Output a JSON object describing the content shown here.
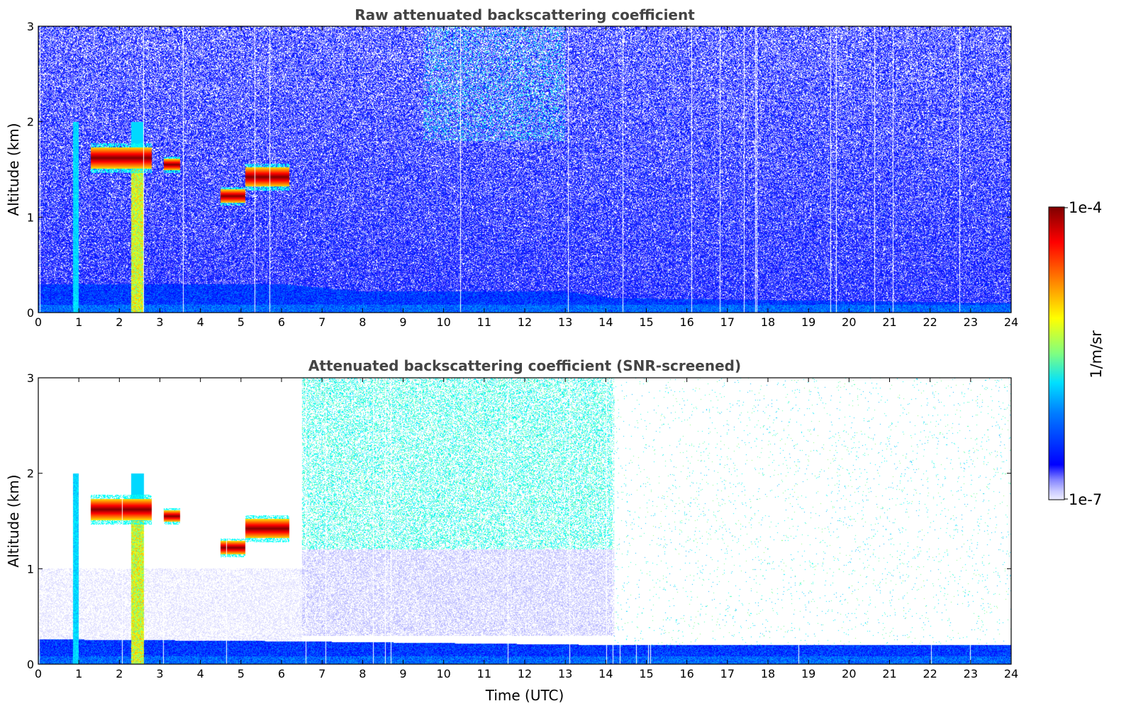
{
  "colormap": [
    "#00007f",
    "#0000ff",
    "#0080ff",
    "#00ffff",
    "#80ff80",
    "#ffff00",
    "#ff8000",
    "#ff0000",
    "#7f0000"
  ],
  "chart_data": [
    {
      "id": "raw",
      "type": "heatmap",
      "title": "Raw attenuated backscattering coefficient",
      "xlabel": "",
      "ylabel": "Altitude (km)",
      "xlim": [
        0,
        24
      ],
      "ylim": [
        0,
        3
      ],
      "xticks": [
        "0",
        "1",
        "2",
        "3",
        "4",
        "5",
        "6",
        "7",
        "8",
        "9",
        "10",
        "11",
        "12",
        "13",
        "14",
        "15",
        "16",
        "17",
        "18",
        "19",
        "20",
        "21",
        "22",
        "23",
        "24"
      ],
      "yticks": [
        "0",
        "1",
        "2",
        "3"
      ],
      "screened": false,
      "cloud_layers": [
        {
          "t_start": 1.3,
          "t_end": 2.8,
          "z_center": 1.62,
          "thickness": 0.22
        },
        {
          "t_start": 3.1,
          "t_end": 3.5,
          "z_center": 1.55,
          "thickness": 0.12
        },
        {
          "t_start": 4.5,
          "t_end": 5.1,
          "z_center": 1.22,
          "thickness": 0.14
        },
        {
          "t_start": 5.1,
          "t_end": 6.2,
          "z_center": 1.42,
          "thickness": 0.2
        }
      ],
      "boundary_layer": [
        {
          "t": 0,
          "z": 0.3
        },
        {
          "t": 6,
          "z": 0.3
        },
        {
          "t": 8,
          "z": 0.22
        },
        {
          "t": 13,
          "z": 0.22
        },
        {
          "t": 14.2,
          "z": 0.15
        },
        {
          "t": 24,
          "z": 0.1
        }
      ]
    },
    {
      "id": "screened",
      "type": "heatmap",
      "title": "Attenuated backscattering coefficient (SNR-screened)",
      "xlabel": "Time (UTC)",
      "ylabel": "Altitude (km)",
      "xlim": [
        0,
        24
      ],
      "ylim": [
        0,
        3
      ],
      "xticks": [
        "0",
        "1",
        "2",
        "3",
        "4",
        "5",
        "6",
        "7",
        "8",
        "9",
        "10",
        "11",
        "12",
        "13",
        "14",
        "15",
        "16",
        "17",
        "18",
        "19",
        "20",
        "21",
        "22",
        "23",
        "24"
      ],
      "yticks": [
        "0",
        "1",
        "2",
        "3"
      ],
      "screened": true,
      "cloud_layers": [
        {
          "t_start": 1.3,
          "t_end": 2.8,
          "z_center": 1.62,
          "thickness": 0.22
        },
        {
          "t_start": 3.1,
          "t_end": 3.5,
          "z_center": 1.55,
          "thickness": 0.12
        },
        {
          "t_start": 4.5,
          "t_end": 5.1,
          "z_center": 1.22,
          "thickness": 0.14
        },
        {
          "t_start": 5.1,
          "t_end": 6.2,
          "z_center": 1.42,
          "thickness": 0.2
        }
      ],
      "boundary_layer": [
        {
          "t": 0,
          "z": 0.26
        },
        {
          "t": 6,
          "z": 0.24
        },
        {
          "t": 14.2,
          "z": 0.2
        },
        {
          "t": 24,
          "z": 0.2
        }
      ]
    }
  ],
  "colorbar": {
    "label": "1/m/sr",
    "max_label": "1e-4",
    "min_label": "1e-7",
    "range": [
      "1e-7",
      "1e-4"
    ]
  }
}
